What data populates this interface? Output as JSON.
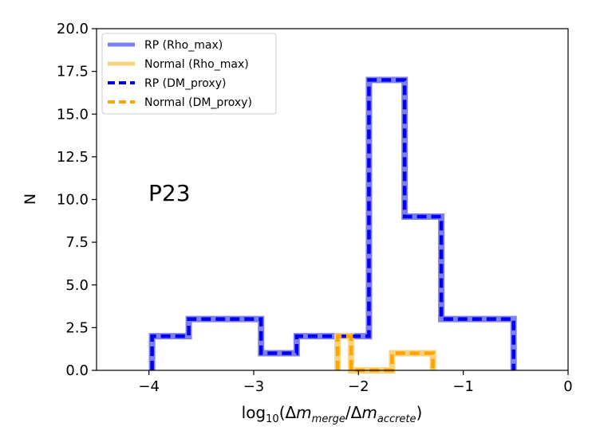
{
  "chart_data": {
    "type": "step-histogram",
    "annotation": "P23",
    "xlabel": {
      "prefix": "log",
      "sub10": "10",
      "open": "(Δ",
      "m1": "m",
      "sub1": "merge",
      "slash": "/Δ",
      "m2": "m",
      "sub2": "accrete",
      "close": ")"
    },
    "ylabel": "N",
    "xlim": [
      -4.5,
      0
    ],
    "ylim": [
      0,
      20
    ],
    "xticks": [
      -4,
      -3,
      -2,
      -1,
      0
    ],
    "xtick_labels": [
      "−4",
      "−3",
      "−2",
      "−1",
      "0"
    ],
    "yticks": [
      0,
      2.5,
      5,
      7.5,
      10,
      12.5,
      15,
      17.5,
      20
    ],
    "ytick_labels": [
      "0.0",
      "2.5",
      "5.0",
      "7.5",
      "10.0",
      "12.5",
      "15.0",
      "17.5",
      "20.0"
    ],
    "legend_position": "upper-left",
    "series": [
      {
        "name": "RP (Rho_max)",
        "color": "#7f7ff5",
        "style": "solid",
        "edges": [
          -3.97,
          -3.62,
          -3.28,
          -2.93,
          -2.59,
          -2.25,
          -1.9,
          -1.56,
          -1.21,
          -0.87,
          -0.52
        ],
        "counts": [
          2,
          3,
          3,
          1,
          2,
          2,
          17,
          9,
          3,
          3
        ]
      },
      {
        "name": "Normal (Rho_max)",
        "color": "#fbd37e",
        "style": "solid",
        "edges": [
          -2.2,
          -2.07,
          -1.94,
          -1.81,
          -1.68,
          -1.55,
          -1.42,
          -1.29
        ],
        "counts": [
          2,
          0,
          0,
          0,
          1,
          1,
          1
        ]
      },
      {
        "name": "RP (DM_proxy)",
        "color": "#0000ee",
        "style": "dashed",
        "edges": [
          -3.97,
          -3.62,
          -3.28,
          -2.93,
          -2.59,
          -2.25,
          -1.9,
          -1.56,
          -1.21,
          -0.87,
          -0.52
        ],
        "counts": [
          2,
          3,
          3,
          1,
          2,
          2,
          17,
          9,
          3,
          3
        ]
      },
      {
        "name": "Normal (DM_proxy)",
        "color": "#ffa500",
        "style": "dashed",
        "edges": [
          -2.2,
          -2.07,
          -1.94,
          -1.81,
          -1.68,
          -1.55,
          -1.42,
          -1.29
        ],
        "counts": [
          2,
          0,
          0,
          0,
          1,
          1,
          1
        ]
      }
    ]
  }
}
